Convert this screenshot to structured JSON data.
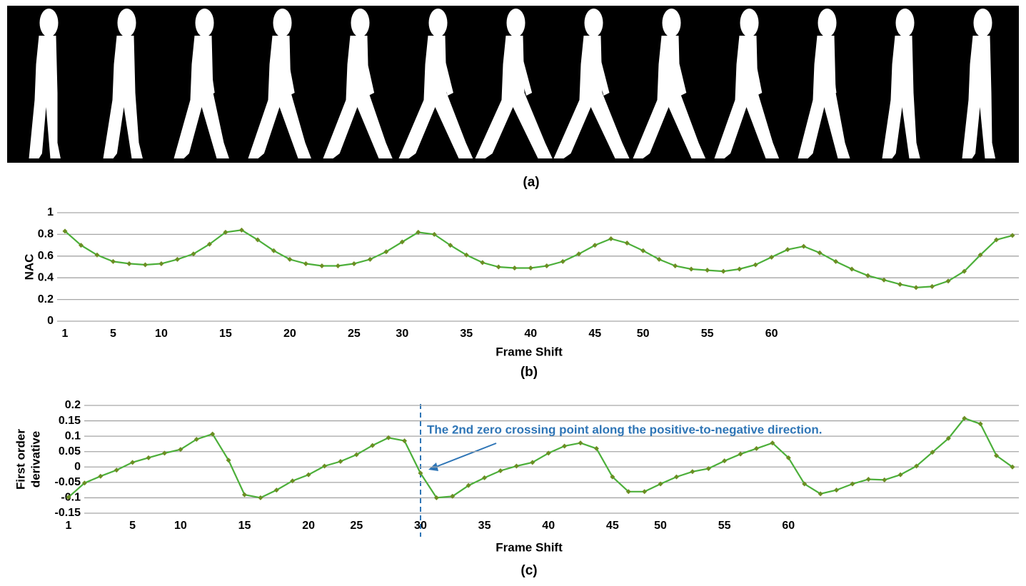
{
  "image_panel": {
    "caption": "(a)"
  },
  "chart_data": [
    {
      "type": "line",
      "caption": "(b)",
      "ylabel": "NAC",
      "xlabel": "Frame Shift",
      "categories": [
        1,
        null,
        null,
        5,
        null,
        null,
        10,
        null,
        null,
        null,
        15,
        null,
        null,
        null,
        20,
        null,
        null,
        null,
        25,
        null,
        null,
        30,
        null,
        null,
        null,
        35,
        null,
        null,
        null,
        40,
        null,
        null,
        null,
        45,
        null,
        null,
        50,
        null,
        null,
        null,
        55,
        null,
        null,
        null,
        60,
        null,
        null,
        null,
        null,
        null,
        null,
        null,
        null,
        null,
        null,
        null,
        null,
        null,
        null,
        null
      ],
      "series": [
        {
          "color": "#4caf3a",
          "marker_color": "#6b8e23",
          "values": [
            0.83,
            0.7,
            0.61,
            0.55,
            0.53,
            0.52,
            0.53,
            0.57,
            0.62,
            0.71,
            0.82,
            0.84,
            0.75,
            0.65,
            0.57,
            0.53,
            0.51,
            0.51,
            0.53,
            0.57,
            0.64,
            0.73,
            0.82,
            0.8,
            0.7,
            0.61,
            0.54,
            0.5,
            0.49,
            0.49,
            0.51,
            0.55,
            0.62,
            0.7,
            0.76,
            0.72,
            0.65,
            0.57,
            0.51,
            0.48,
            0.47,
            0.46,
            0.48,
            0.52,
            0.59,
            0.66,
            0.69,
            0.63,
            0.55,
            0.48,
            0.42,
            0.38,
            0.34,
            0.31,
            0.32,
            0.37,
            0.46,
            0.61,
            0.75,
            0.79
          ]
        }
      ],
      "ylim": [
        0,
        1
      ],
      "yticks": [
        0,
        0.2,
        0.4,
        0.6,
        0.8,
        1
      ],
      "grid": true
    },
    {
      "type": "line",
      "caption": "(c)",
      "ylabel": [
        "First order",
        "derivative"
      ],
      "xlabel": "Frame Shift",
      "annotation": "The 2nd zero crossing point along the positive-to-negative direction.",
      "annotation_color": "#2e75b6",
      "categories": [
        1,
        null,
        null,
        null,
        5,
        null,
        null,
        10,
        null,
        null,
        null,
        15,
        null,
        null,
        null,
        20,
        null,
        null,
        25,
        null,
        null,
        null,
        30,
        null,
        null,
        null,
        35,
        null,
        null,
        null,
        40,
        null,
        null,
        null,
        45,
        null,
        null,
        50,
        null,
        null,
        null,
        55,
        null,
        null,
        null,
        60,
        null,
        null,
        null,
        null,
        null,
        null,
        null,
        null,
        null,
        null,
        null,
        null,
        null,
        null
      ],
      "series": [
        {
          "color": "#4caf3a",
          "marker_color": "#6b8e23",
          "values": [
            -0.098,
            -0.052,
            -0.03,
            -0.01,
            0.015,
            0.03,
            0.045,
            0.057,
            0.09,
            0.107,
            0.022,
            -0.09,
            -0.1,
            -0.075,
            -0.045,
            -0.025,
            0.003,
            0.018,
            0.04,
            0.07,
            0.095,
            0.085,
            -0.02,
            -0.1,
            -0.095,
            -0.06,
            -0.035,
            -0.012,
            0.003,
            0.015,
            0.045,
            0.068,
            0.078,
            0.06,
            -0.032,
            -0.08,
            -0.08,
            -0.055,
            -0.032,
            -0.015,
            -0.005,
            0.02,
            0.042,
            0.06,
            0.078,
            0.03,
            -0.055,
            -0.087,
            -0.075,
            -0.055,
            -0.04,
            -0.042,
            -0.025,
            0.003,
            0.048,
            0.093,
            0.158,
            0.14,
            0.037,
            0.0
          ]
        }
      ],
      "ylim": [
        -0.15,
        0.2
      ],
      "yticks": [
        -0.15,
        -0.1,
        -0.05,
        0,
        0.05,
        0.1,
        0.15,
        0.2
      ],
      "grid": true
    }
  ]
}
